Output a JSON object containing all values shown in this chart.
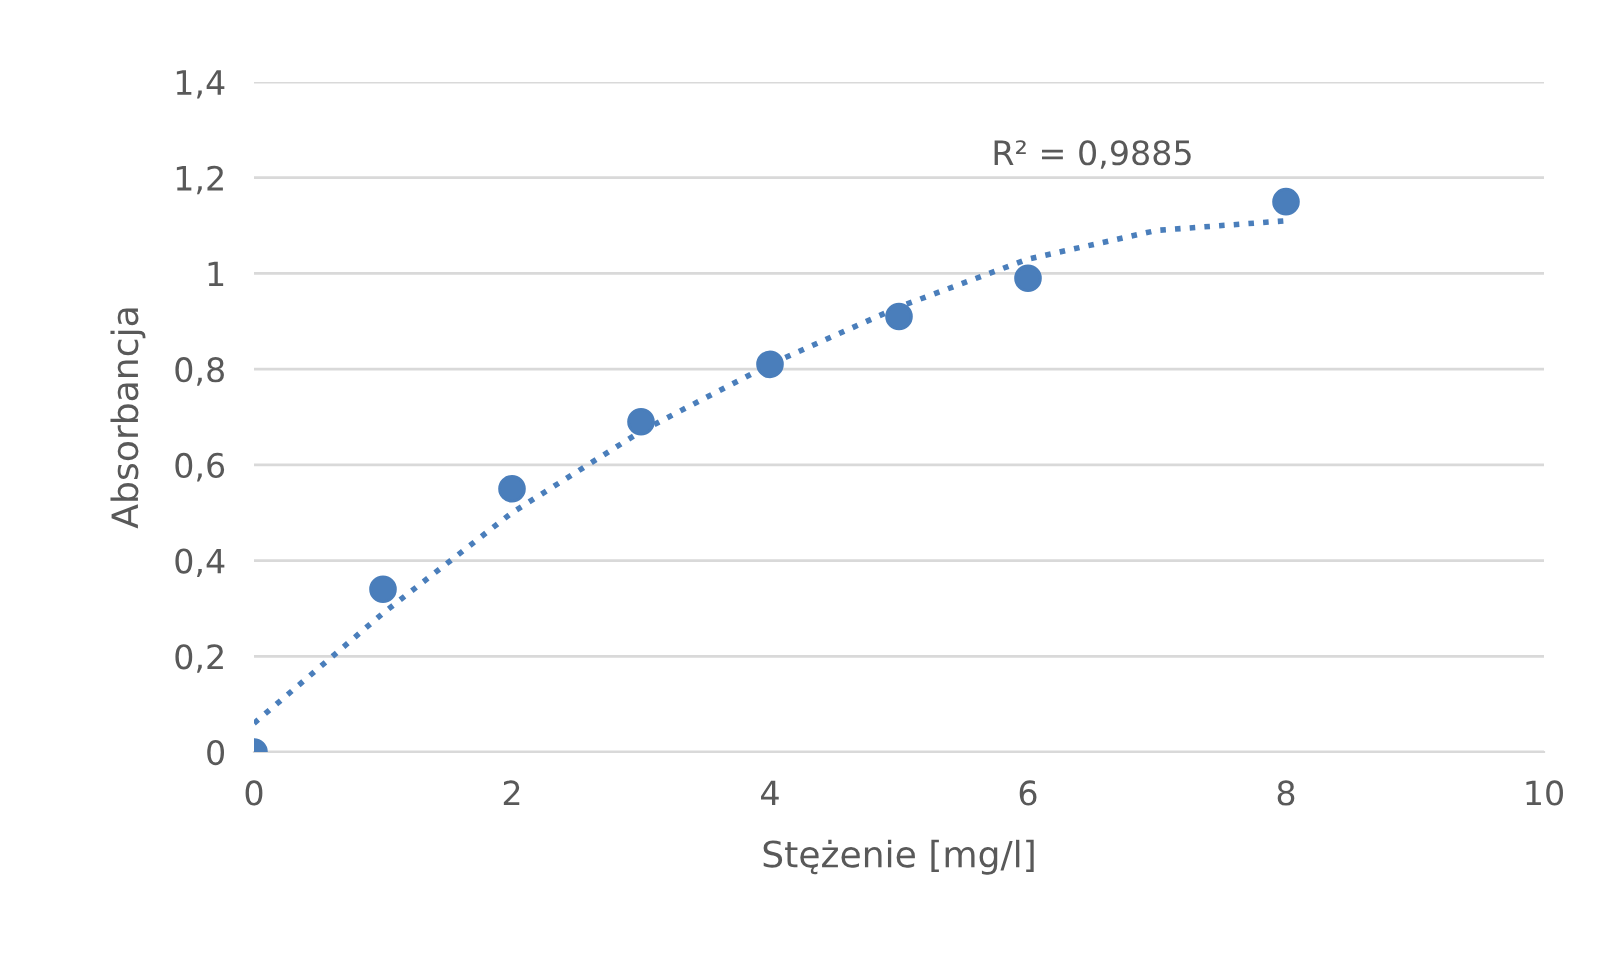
{
  "chart_data": {
    "type": "scatter",
    "xlabel": "Stężenie [mg/l]",
    "ylabel": "Absorbancja",
    "x": [
      0,
      1,
      2,
      3,
      4,
      5,
      6,
      8
    ],
    "series": [
      {
        "color": "#4a7ebb",
        "marker": "circle",
        "values": [
          0,
          0.34,
          0.55,
          0.69,
          0.81,
          0.91,
          0.99,
          1.15
        ]
      },
      {
        "type": "line",
        "color": "#4a7ebb",
        "line_style": "dotted",
        "marker": "none",
        "x": [
          0,
          1,
          2,
          3,
          4,
          5,
          6,
          7,
          8
        ],
        "values": [
          0.06,
          0.29,
          0.5,
          0.67,
          0.81,
          0.93,
          1.03,
          1.09,
          1.11
        ]
      }
    ],
    "annotations": [
      "R² = 0,9885"
    ],
    "xlim": [
      0,
      10
    ],
    "xticks": [
      0,
      2,
      4,
      6,
      8,
      10
    ],
    "ylim": [
      0,
      1.4
    ],
    "yticks": [
      0,
      {
        "value": 0.2,
        "label": "0,2"
      },
      {
        "value": 0.4,
        "label": "0,4"
      },
      {
        "value": 0.6,
        "label": "0,6"
      },
      {
        "value": 0.8,
        "label": "0,8"
      },
      1,
      {
        "value": 1.2,
        "label": "1,2"
      },
      {
        "value": 1.4,
        "label": "1,4"
      }
    ],
    "grid": "y"
  }
}
